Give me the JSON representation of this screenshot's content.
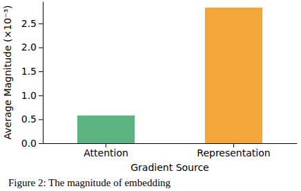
{
  "chart_data": {
    "type": "bar",
    "categories": [
      "Attention",
      "Representation"
    ],
    "values": [
      0.58,
      2.83
    ],
    "colors": [
      "#5db381",
      "#f3a73b"
    ],
    "x_label": "Gradient Source",
    "y_label": "Average Magnitude (×10⁻³)",
    "ylim": [
      0,
      2.96
    ],
    "yticks": [
      {
        "value": 0,
        "label": "0.0"
      },
      0.5,
      {
        "value": 1,
        "label": "1.0"
      },
      1.5,
      {
        "value": 2,
        "label": "2.0"
      },
      2.5
    ],
    "grid": false,
    "annotations": [
      "Figure 2: The magnitude of embedding"
    ]
  }
}
